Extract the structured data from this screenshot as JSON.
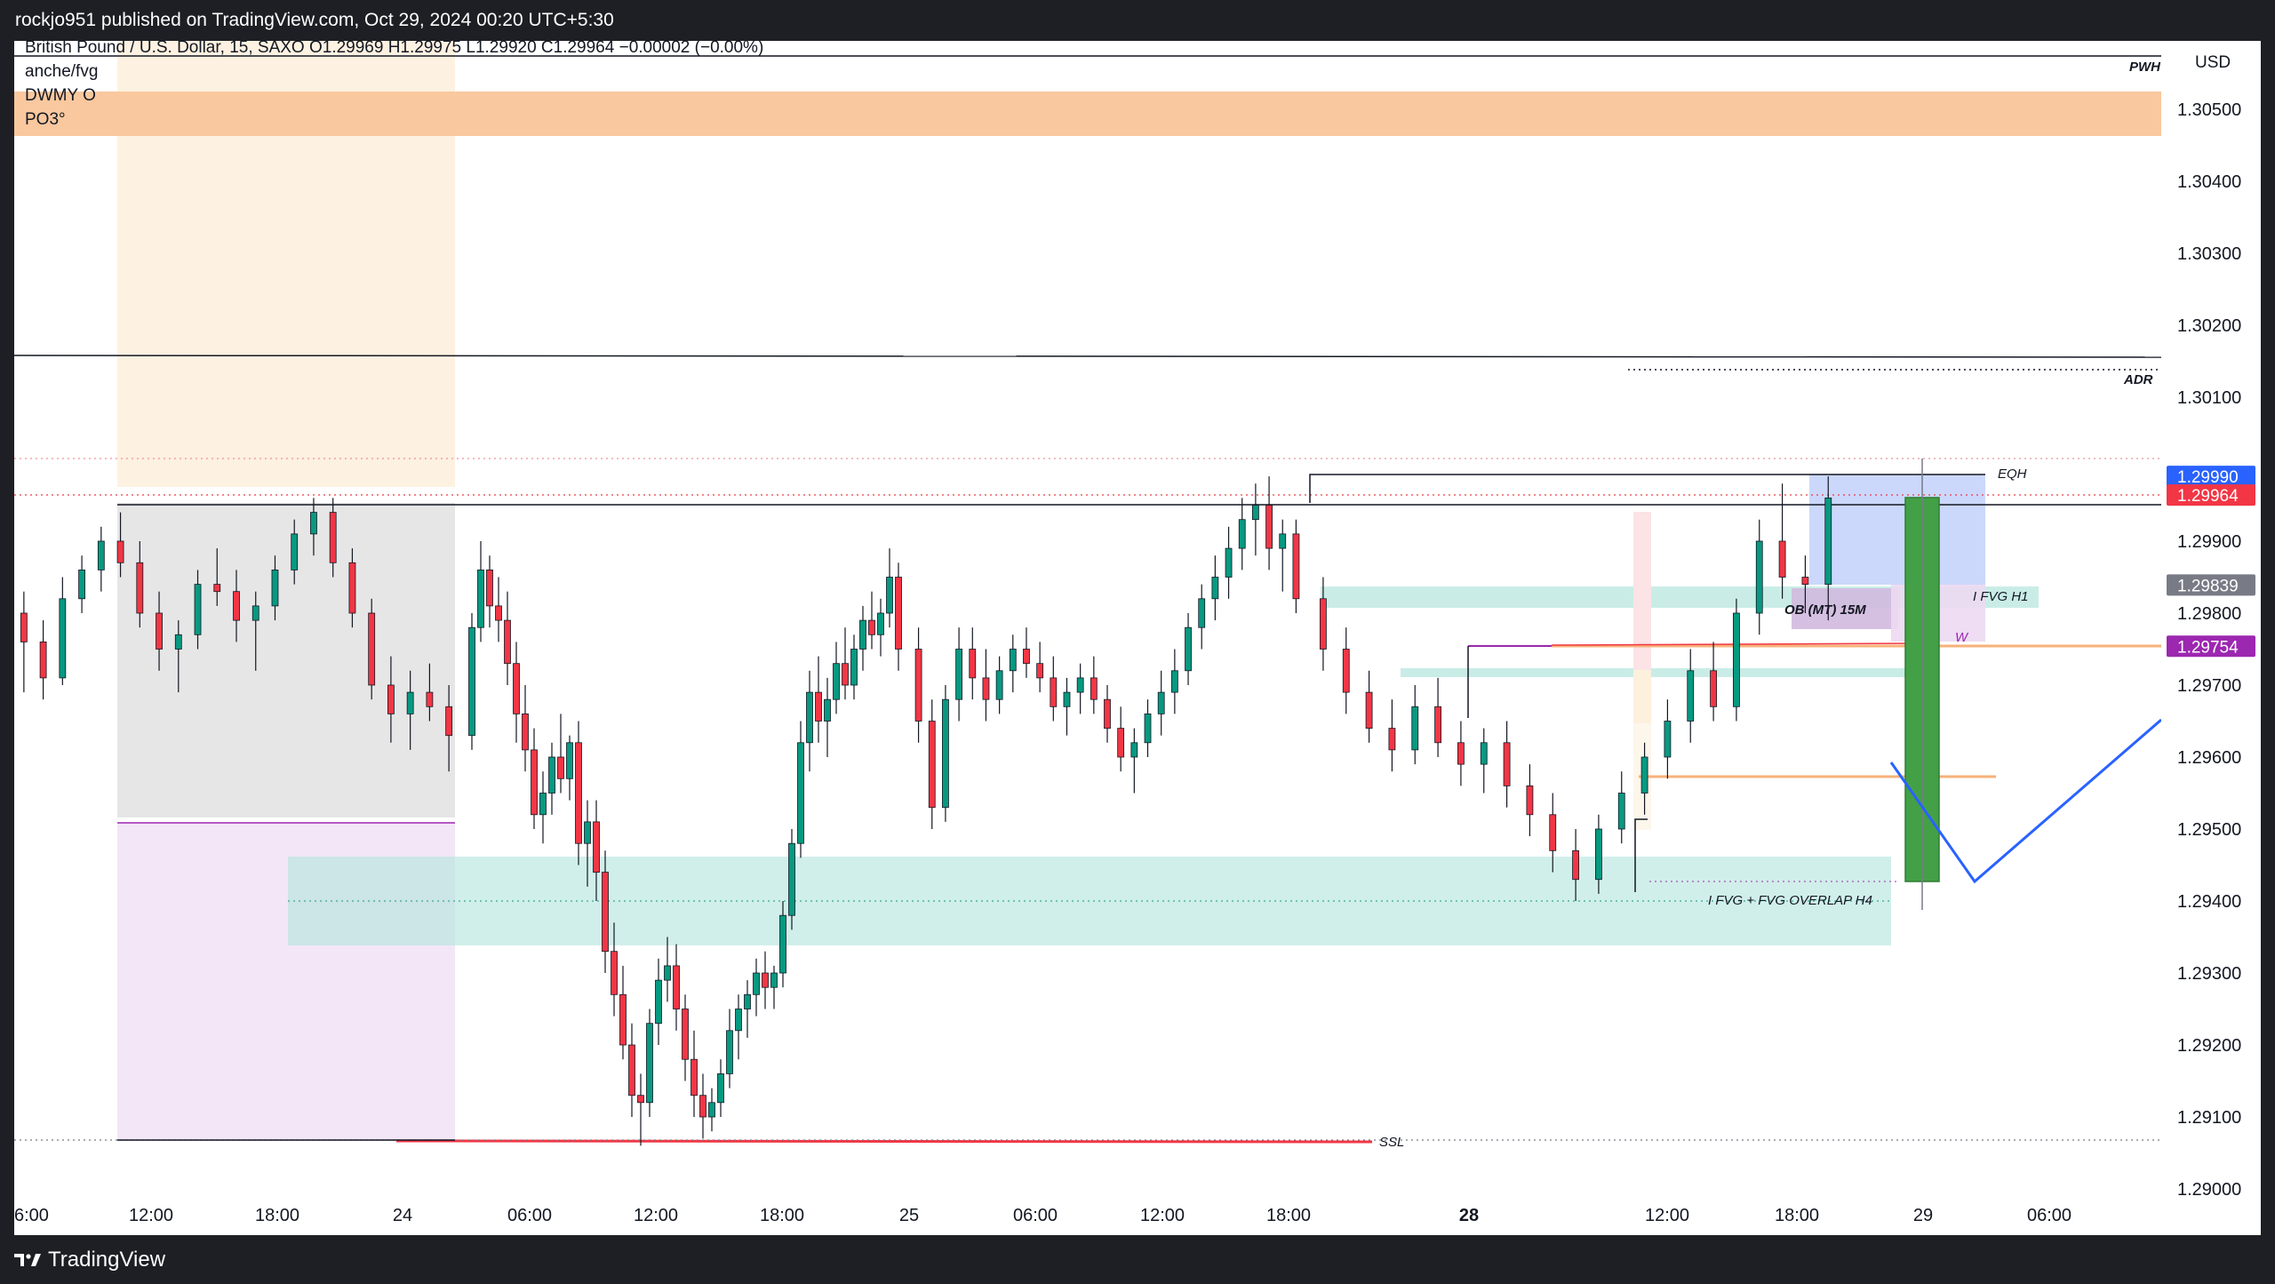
{
  "header": {
    "published_text": "rockjo951 published on TradingView.com, Oct 29, 2024 00:20 UTC+5:30"
  },
  "legend": {
    "symbol_line": "British Pound / U.S. Dollar, 15, SAXO  O1.29969  H1.29975  L1.29920  C1.29964  −0.00002 (−0.00%)",
    "indicators": [
      "anche/fvg",
      "DWMY O",
      "PO3°"
    ]
  },
  "footer": {
    "brand": "TradingView"
  },
  "chart_data": {
    "type": "candlestick",
    "symbol": "British Pound / U.S. Dollar",
    "interval": "15",
    "source": "SAXO",
    "ohlc": {
      "open": 1.29969,
      "high": 1.29975,
      "low": 1.2992,
      "close": 1.29964,
      "change": -2e-05,
      "change_pct": "−0.00%"
    },
    "currency_label": "USD",
    "y_ticks": [
      "1.30500",
      "1.30400",
      "1.30300",
      "1.30200",
      "1.30100",
      "1.29900",
      "1.29800",
      "1.29700",
      "1.29600",
      "1.29500",
      "1.29400",
      "1.29300",
      "1.29200",
      "1.29100",
      "1.29000"
    ],
    "ylim": [
      1.29,
      1.3055
    ],
    "x_ticks": [
      {
        "label": "6:00",
        "bold": false
      },
      {
        "label": "12:00",
        "bold": false
      },
      {
        "label": "18:00",
        "bold": false
      },
      {
        "label": "24",
        "bold": false
      },
      {
        "label": "06:00",
        "bold": false
      },
      {
        "label": "12:00",
        "bold": false
      },
      {
        "label": "18:00",
        "bold": false
      },
      {
        "label": "25",
        "bold": false
      },
      {
        "label": "06:00",
        "bold": false
      },
      {
        "label": "12:00",
        "bold": false
      },
      {
        "label": "18:00",
        "bold": false
      },
      {
        "label": "28",
        "bold": true
      },
      {
        "label": "12:00",
        "bold": false
      },
      {
        "label": "18:00",
        "bold": false
      },
      {
        "label": "29",
        "bold": false
      },
      {
        "label": "06:00",
        "bold": false
      }
    ],
    "price_badges": [
      {
        "value": "1.29990",
        "color": "#2962ff"
      },
      {
        "value": "1.29964",
        "color": "#f23645"
      },
      {
        "value": "1.29839",
        "color": "#787b86"
      },
      {
        "value": "1.29754",
        "color": "#9c27b0"
      }
    ],
    "annotations": [
      "PWH",
      "ADR",
      "EQH",
      "I FVG H1",
      "OB (MT) 15M",
      "W",
      "I FVG + FVG OVERLAP H4",
      "SSL"
    ],
    "colors": {
      "up": "#089981",
      "down": "#f23645",
      "fvg": "#b2e5dc",
      "orange_zone": "#f7b27a",
      "grey_zone": "#d9d9d9",
      "pink_zone": "#ecd9f2",
      "position_box": "#c5d4fb",
      "long_bar": "#43a047"
    },
    "candles": [
      [
        1.298,
        1.2983,
        1.2969,
        1.2976
      ],
      [
        1.2976,
        1.2979,
        1.2968,
        1.2971
      ],
      [
        1.2971,
        1.2985,
        1.297,
        1.2982
      ],
      [
        1.2982,
        1.2988,
        1.298,
        1.2986
      ],
      [
        1.2986,
        1.2992,
        1.2983,
        1.299
      ],
      [
        1.299,
        1.2994,
        1.2985,
        1.2987
      ],
      [
        1.2987,
        1.299,
        1.2978,
        1.298
      ],
      [
        1.298,
        1.2983,
        1.2972,
        1.2975
      ],
      [
        1.2975,
        1.2979,
        1.2969,
        1.2977
      ],
      [
        1.2977,
        1.2986,
        1.2975,
        1.2984
      ],
      [
        1.2984,
        1.2989,
        1.2981,
        1.2983
      ],
      [
        1.2983,
        1.2986,
        1.2976,
        1.2979
      ],
      [
        1.2979,
        1.2983,
        1.2972,
        1.2981
      ],
      [
        1.2981,
        1.2988,
        1.2979,
        1.2986
      ],
      [
        1.2986,
        1.2993,
        1.2984,
        1.2991
      ],
      [
        1.2991,
        1.2996,
        1.2988,
        1.2994
      ],
      [
        1.2994,
        1.2996,
        1.2985,
        1.2987
      ],
      [
        1.2987,
        1.2989,
        1.2978,
        1.298
      ],
      [
        1.298,
        1.2982,
        1.2968,
        1.297
      ],
      [
        1.297,
        1.2974,
        1.2962,
        1.2966
      ],
      [
        1.2966,
        1.2972,
        1.2961,
        1.2969
      ],
      [
        1.2969,
        1.2973,
        1.2965,
        1.2967
      ],
      [
        1.2967,
        1.297,
        1.2958,
        1.2963
      ],
      [
        1.2963,
        1.298,
        1.2961,
        1.2978
      ],
      [
        1.2978,
        1.299,
        1.2976,
        1.2986
      ],
      [
        1.2986,
        1.2988,
        1.2978,
        1.2981
      ],
      [
        1.2981,
        1.2985,
        1.2976,
        1.2979
      ],
      [
        1.2979,
        1.2983,
        1.297,
        1.2973
      ],
      [
        1.2973,
        1.2976,
        1.2962,
        1.2966
      ],
      [
        1.2966,
        1.297,
        1.2958,
        1.2961
      ],
      [
        1.2961,
        1.2964,
        1.295,
        1.2952
      ],
      [
        1.2952,
        1.2958,
        1.2948,
        1.2955
      ],
      [
        1.2955,
        1.2962,
        1.2952,
        1.296
      ],
      [
        1.296,
        1.2966,
        1.2955,
        1.2957
      ],
      [
        1.2957,
        1.2963,
        1.2954,
        1.2962
      ],
      [
        1.2962,
        1.2965,
        1.2945,
        1.2948
      ],
      [
        1.2948,
        1.2954,
        1.2942,
        1.2951
      ],
      [
        1.2951,
        1.2954,
        1.294,
        1.2944
      ],
      [
        1.2944,
        1.2947,
        1.293,
        1.2933
      ],
      [
        1.2933,
        1.2937,
        1.2924,
        1.2927
      ],
      [
        1.2927,
        1.2931,
        1.2918,
        1.292
      ],
      [
        1.292,
        1.2923,
        1.291,
        1.2913
      ],
      [
        1.2913,
        1.2916,
        1.2906,
        1.2912
      ],
      [
        1.2912,
        1.2925,
        1.291,
        1.2923
      ],
      [
        1.2923,
        1.2932,
        1.292,
        1.2929
      ],
      [
        1.2929,
        1.2935,
        1.2926,
        1.2931
      ],
      [
        1.2931,
        1.2934,
        1.2922,
        1.2925
      ],
      [
        1.2925,
        1.2927,
        1.2915,
        1.2918
      ],
      [
        1.2918,
        1.2922,
        1.291,
        1.2913
      ],
      [
        1.2913,
        1.2916,
        1.2907,
        1.291
      ],
      [
        1.291,
        1.2914,
        1.2908,
        1.2912
      ],
      [
        1.2912,
        1.2918,
        1.291,
        1.2916
      ],
      [
        1.2916,
        1.2925,
        1.2914,
        1.2922
      ],
      [
        1.2922,
        1.2927,
        1.2918,
        1.2925
      ],
      [
        1.2925,
        1.2929,
        1.2921,
        1.2927
      ],
      [
        1.2927,
        1.2932,
        1.2924,
        1.293
      ],
      [
        1.293,
        1.2933,
        1.2925,
        1.2928
      ],
      [
        1.2928,
        1.2931,
        1.2925,
        1.293
      ],
      [
        1.293,
        1.294,
        1.2928,
        1.2938
      ],
      [
        1.2938,
        1.295,
        1.2936,
        1.2948
      ],
      [
        1.2948,
        1.2965,
        1.2946,
        1.2962
      ],
      [
        1.2962,
        1.2972,
        1.2958,
        1.2969
      ],
      [
        1.2969,
        1.2974,
        1.2962,
        1.2965
      ],
      [
        1.2965,
        1.2971,
        1.296,
        1.2968
      ],
      [
        1.2968,
        1.2976,
        1.2966,
        1.2973
      ],
      [
        1.2973,
        1.2978,
        1.2968,
        1.297
      ],
      [
        1.297,
        1.2977,
        1.2968,
        1.2975
      ],
      [
        1.2975,
        1.2981,
        1.2972,
        1.2979
      ],
      [
        1.2979,
        1.2983,
        1.2975,
        1.2977
      ],
      [
        1.2977,
        1.2982,
        1.2974,
        1.298
      ],
      [
        1.298,
        1.2989,
        1.2978,
        1.2985
      ],
      [
        1.2985,
        1.2987,
        1.2972,
        1.2975
      ],
      [
        1.2975,
        1.2978,
        1.2962,
        1.2965
      ],
      [
        1.2965,
        1.2968,
        1.295,
        1.2953
      ],
      [
        1.2953,
        1.297,
        1.2951,
        1.2968
      ],
      [
        1.2968,
        1.2978,
        1.2965,
        1.2975
      ],
      [
        1.2975,
        1.2978,
        1.2968,
        1.2971
      ],
      [
        1.2971,
        1.2975,
        1.2965,
        1.2968
      ],
      [
        1.2968,
        1.2974,
        1.2966,
        1.2972
      ],
      [
        1.2972,
        1.2977,
        1.2969,
        1.2975
      ],
      [
        1.2975,
        1.2978,
        1.2971,
        1.2973
      ],
      [
        1.2973,
        1.2976,
        1.2969,
        1.2971
      ],
      [
        1.2971,
        1.2974,
        1.2965,
        1.2967
      ],
      [
        1.2967,
        1.2971,
        1.2963,
        1.2969
      ],
      [
        1.2969,
        1.2973,
        1.2966,
        1.2971
      ],
      [
        1.2971,
        1.2974,
        1.2966,
        1.2968
      ],
      [
        1.2968,
        1.297,
        1.2962,
        1.2964
      ],
      [
        1.2964,
        1.2967,
        1.2958,
        1.296
      ],
      [
        1.296,
        1.2964,
        1.2955,
        1.2962
      ],
      [
        1.2962,
        1.2968,
        1.296,
        1.2966
      ],
      [
        1.2966,
        1.2972,
        1.2963,
        1.2969
      ],
      [
        1.2969,
        1.2975,
        1.2966,
        1.2972
      ],
      [
        1.2972,
        1.298,
        1.297,
        1.2978
      ],
      [
        1.2978,
        1.2984,
        1.2975,
        1.2982
      ],
      [
        1.2982,
        1.2988,
        1.2979,
        1.2985
      ],
      [
        1.2985,
        1.2992,
        1.2982,
        1.2989
      ],
      [
        1.2989,
        1.2996,
        1.2986,
        1.2993
      ],
      [
        1.2993,
        1.2998,
        1.2988,
        1.2995
      ],
      [
        1.2995,
        1.2999,
        1.2986,
        1.2989
      ],
      [
        1.2989,
        1.2993,
        1.2983,
        1.2991
      ],
      [
        1.2991,
        1.2993,
        1.298,
        1.2982
      ],
      [
        1.2982,
        1.2985,
        1.2972,
        1.2975
      ],
      [
        1.2975,
        1.2978,
        1.2966,
        1.2969
      ],
      [
        1.2969,
        1.2972,
        1.2962,
        1.2964
      ],
      [
        1.2964,
        1.2968,
        1.2958,
        1.2961
      ],
      [
        1.2961,
        1.297,
        1.2959,
        1.2967
      ],
      [
        1.2967,
        1.2971,
        1.296,
        1.2962
      ],
      [
        1.2962,
        1.2965,
        1.2956,
        1.2959
      ],
      [
        1.2959,
        1.2964,
        1.2955,
        1.2962
      ],
      [
        1.2962,
        1.2965,
        1.2953,
        1.2956
      ],
      [
        1.2956,
        1.2959,
        1.2949,
        1.2952
      ],
      [
        1.2952,
        1.2955,
        1.2944,
        1.2947
      ],
      [
        1.2947,
        1.295,
        1.294,
        1.2943
      ],
      [
        1.2943,
        1.2952,
        1.2941,
        1.295
      ],
      [
        1.295,
        1.2958,
        1.2948,
        1.2955
      ],
      [
        1.2955,
        1.2962,
        1.2952,
        1.296
      ],
      [
        1.296,
        1.2968,
        1.2957,
        1.2965
      ],
      [
        1.2965,
        1.2975,
        1.2962,
        1.2972
      ],
      [
        1.2972,
        1.2976,
        1.2965,
        1.2967
      ],
      [
        1.2967,
        1.2982,
        1.2965,
        1.298
      ],
      [
        1.298,
        1.2993,
        1.2977,
        1.299
      ],
      [
        1.299,
        1.2998,
        1.2982,
        1.2985
      ],
      [
        1.2985,
        1.2988,
        1.298,
        1.2984
      ],
      [
        1.2984,
        1.2999,
        1.2979,
        1.2996
      ]
    ]
  }
}
